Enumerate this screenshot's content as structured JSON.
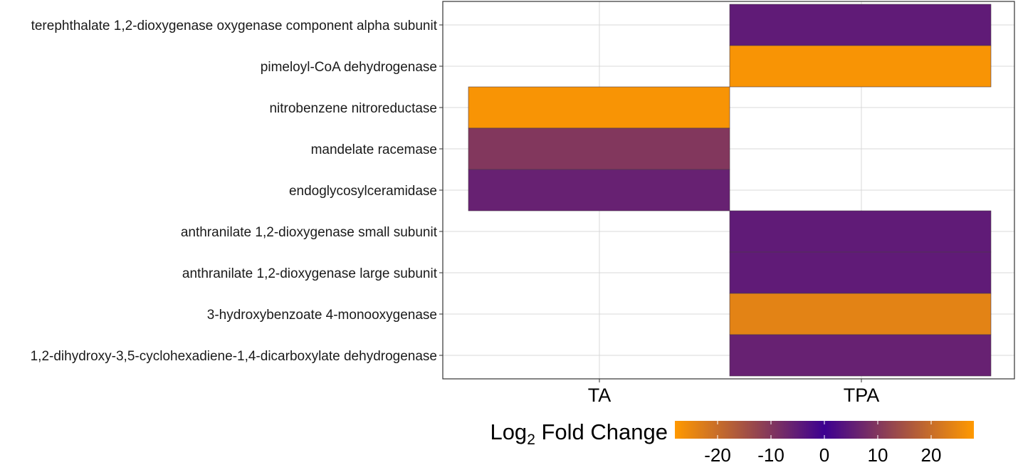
{
  "chart_data": {
    "type": "heatmap",
    "title": "",
    "xlabel": "",
    "ylabel": "",
    "x_categories": [
      "TA",
      "TPA"
    ],
    "y_categories": [
      "terephthalate 1,2-dioxygenase oxygenase component alpha subunit",
      "pimeloyl-CoA dehydrogenase",
      "nitrobenzene nitroreductase",
      "mandelate racemase",
      "endoglycosylceramidase",
      "anthranilate 1,2-dioxygenase small subunit",
      "anthranilate 1,2-dioxygenase large subunit",
      "3-hydroxybenzoate 4-monooxygenase",
      "1,2-dihydroxy-3,5-cyclohexadiene-1,4-dicarboxylate dehydrogenase"
    ],
    "cells": [
      {
        "x": "TPA",
        "y": "terephthalate 1,2-dioxygenase oxygenase component alpha subunit",
        "value": 5
      },
      {
        "x": "TPA",
        "y": "pimeloyl-CoA dehydrogenase",
        "value": 27
      },
      {
        "x": "TA",
        "y": "nitrobenzene nitroreductase",
        "value": -27
      },
      {
        "x": "TA",
        "y": "mandelate racemase",
        "value": -10
      },
      {
        "x": "TA",
        "y": "endoglycosylceramidase",
        "value": 6
      },
      {
        "x": "TPA",
        "y": "anthranilate 1,2-dioxygenase small subunit",
        "value": 5
      },
      {
        "x": "TPA",
        "y": "anthranilate 1,2-dioxygenase large subunit",
        "value": 5
      },
      {
        "x": "TPA",
        "y": "3-hydroxybenzoate 4-monooxygenase",
        "value": -24
      },
      {
        "x": "TPA",
        "y": "1,2-dihydroxy-3,5-cyclohexadiene-1,4-dicarboxylate dehydrogenase",
        "value": 6
      }
    ],
    "legend": {
      "title_main": "Log",
      "title_sub": "2",
      "title_rest": " Fold Change",
      "ticks": [
        -20,
        -10,
        0,
        10,
        20
      ],
      "range": [
        -28,
        28
      ],
      "placement": "bottom",
      "colors": [
        "#FF9900",
        "#3D0091",
        "#FF9900"
      ]
    },
    "grid": true
  }
}
